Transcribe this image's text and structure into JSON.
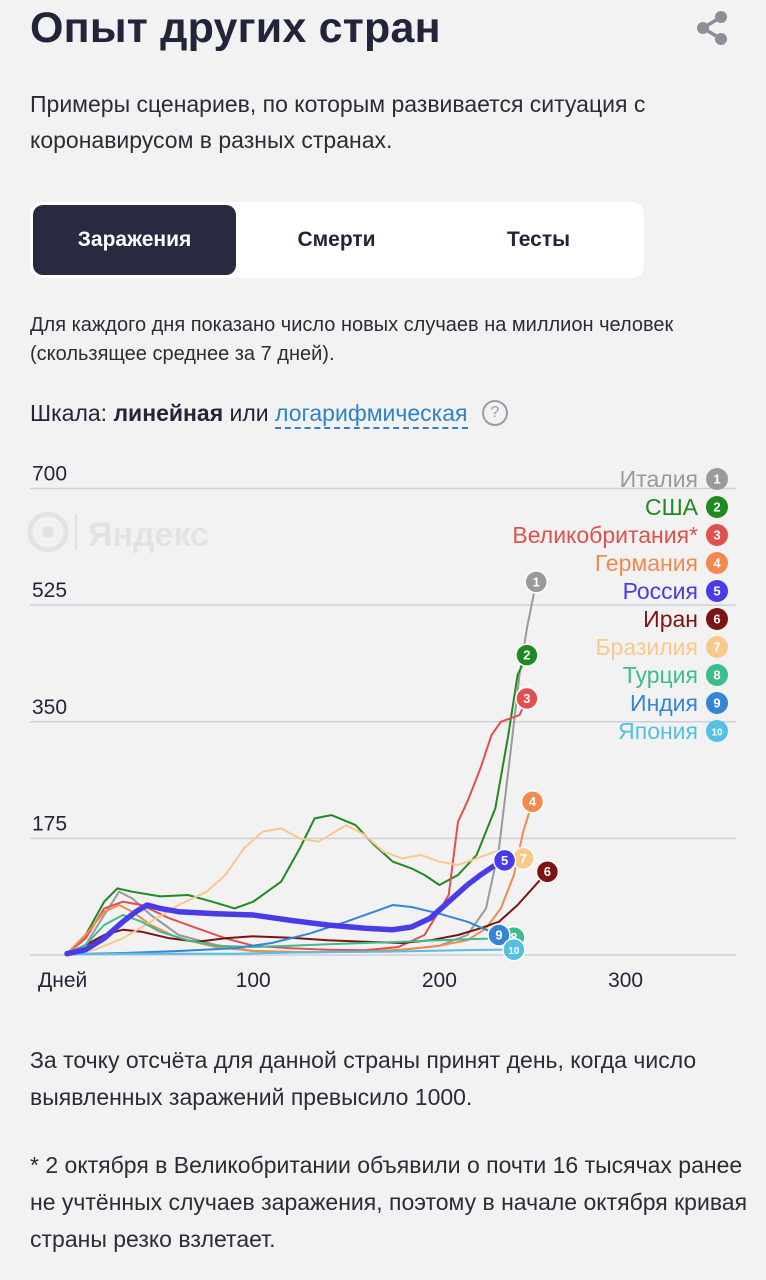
{
  "header": {
    "title": "Опыт других стран",
    "subtitle": "Примеры сценариев, по которым развивается ситуация с коронавирусом в разных странах."
  },
  "tabs": [
    {
      "label": "Заражения",
      "active": true
    },
    {
      "label": "Смерти",
      "active": false
    },
    {
      "label": "Тесты",
      "active": false
    }
  ],
  "description": "Для каждого дня показано число новых случаев на миллион человек (скользящее среднее за 7 дней).",
  "scale": {
    "label": "Шкала:",
    "linear": "линейная",
    "or": "или",
    "log": "логарифмическая",
    "help": "?"
  },
  "watermark": "Яндекс",
  "notes": {
    "reference": "За точку отсчёта для данной страны принят день, когда число выявленных заражений превысило 1000.",
    "footnote": "* 2 октября в Великобритании объявили о почти 16 тысячах ранее не учтённых случаев заражения, поэтому в начале октября кривая страны резко взлетает."
  },
  "chart_data": {
    "type": "line",
    "title": "",
    "xlabel": "Дней",
    "ylabel": "",
    "xlim": [
      0,
      360
    ],
    "ylim": [
      0,
      700
    ],
    "x_ticks": [
      100,
      200,
      300
    ],
    "y_ticks": [
      175,
      350,
      525,
      700
    ],
    "grid": true,
    "legend_position": "top-right",
    "series": [
      {
        "name": "Италия",
        "num": "1",
        "color": "#9a9a9a",
        "points": [
          [
            0,
            2
          ],
          [
            10,
            15
          ],
          [
            20,
            60
          ],
          [
            28,
            95
          ],
          [
            35,
            85
          ],
          [
            45,
            60
          ],
          [
            60,
            30
          ],
          [
            80,
            15
          ],
          [
            100,
            6
          ],
          [
            130,
            4
          ],
          [
            160,
            5
          ],
          [
            180,
            8
          ],
          [
            200,
            14
          ],
          [
            215,
            30
          ],
          [
            225,
            70
          ],
          [
            232,
            160
          ],
          [
            238,
            300
          ],
          [
            243,
            420
          ],
          [
            247,
            490
          ],
          [
            252,
            560
          ]
        ]
      },
      {
        "name": "США",
        "num": "2",
        "color": "#1f8a1f",
        "points": [
          [
            0,
            2
          ],
          [
            10,
            30
          ],
          [
            20,
            80
          ],
          [
            27,
            100
          ],
          [
            35,
            95
          ],
          [
            50,
            88
          ],
          [
            65,
            90
          ],
          [
            78,
            80
          ],
          [
            90,
            70
          ],
          [
            100,
            80
          ],
          [
            115,
            110
          ],
          [
            125,
            160
          ],
          [
            133,
            205
          ],
          [
            142,
            210
          ],
          [
            155,
            195
          ],
          [
            165,
            165
          ],
          [
            175,
            140
          ],
          [
            185,
            130
          ],
          [
            192,
            120
          ],
          [
            200,
            105
          ],
          [
            210,
            120
          ],
          [
            220,
            150
          ],
          [
            230,
            220
          ],
          [
            237,
            330
          ],
          [
            242,
            420
          ],
          [
            247,
            450
          ]
        ]
      },
      {
        "name": "Великобритания*",
        "num": "3",
        "color": "#e0504d",
        "points": [
          [
            0,
            2
          ],
          [
            10,
            25
          ],
          [
            20,
            70
          ],
          [
            30,
            80
          ],
          [
            40,
            75
          ],
          [
            55,
            55
          ],
          [
            70,
            40
          ],
          [
            85,
            25
          ],
          [
            100,
            14
          ],
          [
            120,
            10
          ],
          [
            140,
            8
          ],
          [
            160,
            7
          ],
          [
            178,
            12
          ],
          [
            192,
            30
          ],
          [
            205,
            90
          ],
          [
            210,
            200
          ],
          [
            215,
            230
          ],
          [
            222,
            280
          ],
          [
            228,
            330
          ],
          [
            233,
            350
          ],
          [
            238,
            355
          ],
          [
            243,
            360
          ],
          [
            247,
            385
          ]
        ]
      },
      {
        "name": "Германия",
        "num": "4",
        "color": "#f2894f",
        "points": [
          [
            0,
            2
          ],
          [
            10,
            30
          ],
          [
            20,
            65
          ],
          [
            28,
            75
          ],
          [
            35,
            65
          ],
          [
            45,
            45
          ],
          [
            60,
            25
          ],
          [
            80,
            12
          ],
          [
            100,
            6
          ],
          [
            130,
            4
          ],
          [
            160,
            5
          ],
          [
            180,
            8
          ],
          [
            200,
            14
          ],
          [
            215,
            22
          ],
          [
            225,
            40
          ],
          [
            233,
            70
          ],
          [
            240,
            120
          ],
          [
            245,
            185
          ],
          [
            250,
            230
          ]
        ]
      },
      {
        "name": "Россия",
        "num": "5",
        "color": "#4a3be8",
        "points": [
          [
            0,
            2
          ],
          [
            10,
            8
          ],
          [
            20,
            25
          ],
          [
            30,
            50
          ],
          [
            37,
            65
          ],
          [
            43,
            75
          ],
          [
            50,
            70
          ],
          [
            60,
            65
          ],
          [
            80,
            62
          ],
          [
            100,
            60
          ],
          [
            120,
            52
          ],
          [
            140,
            45
          ],
          [
            160,
            40
          ],
          [
            175,
            38
          ],
          [
            185,
            42
          ],
          [
            195,
            55
          ],
          [
            205,
            80
          ],
          [
            215,
            105
          ],
          [
            222,
            120
          ],
          [
            230,
            135
          ],
          [
            235,
            142
          ]
        ]
      },
      {
        "name": "Иран",
        "num": "6",
        "color": "#7d1313",
        "points": [
          [
            0,
            2
          ],
          [
            10,
            15
          ],
          [
            20,
            30
          ],
          [
            30,
            38
          ],
          [
            40,
            35
          ],
          [
            55,
            25
          ],
          [
            70,
            20
          ],
          [
            85,
            25
          ],
          [
            100,
            28
          ],
          [
            120,
            26
          ],
          [
            140,
            22
          ],
          [
            160,
            20
          ],
          [
            180,
            18
          ],
          [
            195,
            22
          ],
          [
            210,
            30
          ],
          [
            222,
            40
          ],
          [
            232,
            50
          ],
          [
            242,
            75
          ],
          [
            250,
            100
          ],
          [
            258,
            125
          ]
        ]
      },
      {
        "name": "Бразилия",
        "num": "7",
        "color": "#f9c98a",
        "points": [
          [
            0,
            2
          ],
          [
            15,
            8
          ],
          [
            30,
            25
          ],
          [
            45,
            50
          ],
          [
            60,
            75
          ],
          [
            75,
            95
          ],
          [
            85,
            120
          ],
          [
            95,
            160
          ],
          [
            105,
            185
          ],
          [
            115,
            190
          ],
          [
            125,
            175
          ],
          [
            135,
            170
          ],
          [
            150,
            195
          ],
          [
            160,
            180
          ],
          [
            170,
            155
          ],
          [
            180,
            145
          ],
          [
            190,
            150
          ],
          [
            200,
            140
          ],
          [
            210,
            135
          ],
          [
            220,
            145
          ],
          [
            230,
            155
          ],
          [
            238,
            150
          ],
          [
            245,
            145
          ]
        ]
      },
      {
        "name": "Турция",
        "num": "8",
        "color": "#3dbd8b",
        "points": [
          [
            0,
            2
          ],
          [
            10,
            15
          ],
          [
            20,
            45
          ],
          [
            30,
            60
          ],
          [
            40,
            50
          ],
          [
            50,
            35
          ],
          [
            65,
            22
          ],
          [
            80,
            14
          ],
          [
            100,
            12
          ],
          [
            120,
            14
          ],
          [
            140,
            16
          ],
          [
            160,
            18
          ],
          [
            180,
            20
          ],
          [
            200,
            22
          ],
          [
            220,
            24
          ],
          [
            235,
            25
          ],
          [
            240,
            26
          ]
        ]
      },
      {
        "name": "Индия",
        "num": "9",
        "color": "#3585d6",
        "points": [
          [
            0,
            1
          ],
          [
            30,
            3
          ],
          [
            60,
            6
          ],
          [
            90,
            10
          ],
          [
            110,
            18
          ],
          [
            130,
            32
          ],
          [
            150,
            50
          ],
          [
            165,
            65
          ],
          [
            175,
            75
          ],
          [
            185,
            72
          ],
          [
            200,
            62
          ],
          [
            215,
            50
          ],
          [
            225,
            38
          ],
          [
            232,
            30
          ]
        ]
      },
      {
        "name": "Япония",
        "num": "10",
        "color": "#55c0e3",
        "points": [
          [
            0,
            1
          ],
          [
            30,
            2
          ],
          [
            60,
            2
          ],
          [
            90,
            2
          ],
          [
            110,
            3
          ],
          [
            130,
            4
          ],
          [
            150,
            5
          ],
          [
            170,
            5
          ],
          [
            190,
            6
          ],
          [
            210,
            7
          ],
          [
            230,
            8
          ],
          [
            240,
            8
          ]
        ]
      }
    ]
  }
}
